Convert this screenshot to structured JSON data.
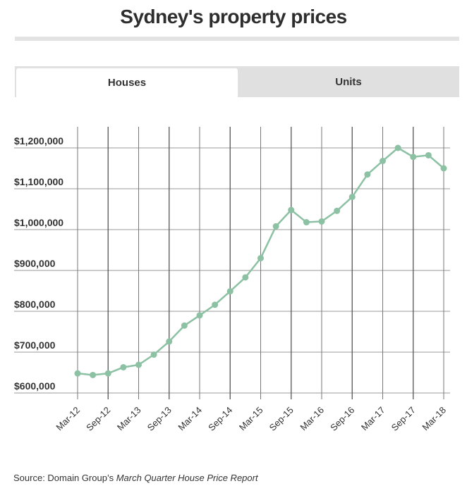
{
  "header": {
    "title": "Sydney's property prices"
  },
  "tabs": [
    {
      "label": "Houses",
      "active": true
    },
    {
      "label": "Units",
      "active": false
    }
  ],
  "chart_data": {
    "type": "line",
    "title": "Sydney's property prices",
    "series_name": "Houses",
    "x": [
      "Mar-12",
      "Jun-12",
      "Sep-12",
      "Dec-12",
      "Mar-13",
      "Jun-13",
      "Sep-13",
      "Dec-13",
      "Mar-14",
      "Jun-14",
      "Sep-14",
      "Dec-14",
      "Mar-15",
      "Jun-15",
      "Sep-15",
      "Dec-15",
      "Mar-16",
      "Jun-16",
      "Sep-16",
      "Dec-16",
      "Mar-17",
      "Jun-17",
      "Sep-17",
      "Dec-17",
      "Mar-18"
    ],
    "values": [
      648000,
      644000,
      648000,
      663000,
      669000,
      694000,
      726000,
      765000,
      790000,
      816000,
      849000,
      883000,
      930000,
      1008000,
      1048000,
      1018000,
      1020000,
      1046000,
      1080000,
      1135000,
      1168000,
      1200000,
      1178000,
      1182000,
      1150000
    ],
    "xtick_labels": [
      "Mar-12",
      "Sep-12",
      "Mar-13",
      "Sep-13",
      "Mar-14",
      "Sep-14",
      "Mar-15",
      "Sep-15",
      "Mar-16",
      "Sep-16",
      "Mar-17",
      "Sep-17",
      "Mar-18"
    ],
    "ytick_values": [
      600000,
      700000,
      800000,
      900000,
      1000000,
      1100000,
      1200000
    ],
    "ytick_labels": [
      "$600,000",
      "$700,000",
      "$800,000",
      "$900,000",
      "$1,000,000",
      "$1,100,000",
      "$1,200,000"
    ],
    "ylim": [
      600000,
      1200000
    ],
    "xlabel": "",
    "ylabel": "",
    "grid": true,
    "line_color": "#8dc1a4",
    "point_color": "#8dc1a4"
  },
  "footer": {
    "source_prefix": "Source: Domain Group’s ",
    "source_italic": "March Quarter House Price Report"
  }
}
